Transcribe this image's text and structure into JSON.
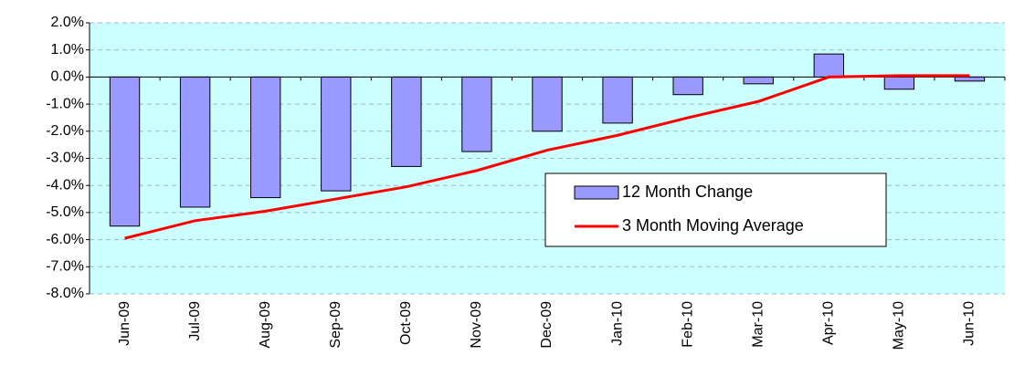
{
  "chart_data": {
    "type": "bar-line",
    "categories": [
      "Jun-09",
      "Jul-09",
      "Aug-09",
      "Sep-09",
      "Oct-09",
      "Nov-09",
      "Dec-09",
      "Jan-10",
      "Feb-10",
      "Mar-10",
      "Apr-10",
      "May-10",
      "Jun-10"
    ],
    "series": [
      {
        "name": "12 Month Change",
        "type": "bar",
        "color": "#9999ff",
        "values": [
          -5.5,
          -4.8,
          -4.45,
          -4.2,
          -3.3,
          -2.75,
          -2.0,
          -1.7,
          -0.65,
          -0.25,
          0.85,
          -0.45,
          -0.15
        ]
      },
      {
        "name": "3 Month Moving Average",
        "type": "line",
        "color": "#ff0000",
        "values": [
          -5.95,
          -5.3,
          -4.95,
          -4.5,
          -4.05,
          -3.45,
          -2.7,
          -2.15,
          -1.5,
          -0.9,
          0.0,
          0.05,
          0.05
        ]
      }
    ],
    "ylim": [
      -8,
      2
    ],
    "yticks": [
      {
        "value": 2,
        "label": "2.0%"
      },
      {
        "value": 1,
        "label": "1.0%"
      },
      {
        "value": 0,
        "label": "0.0%"
      },
      {
        "value": -1,
        "label": "-1.0%"
      },
      {
        "value": -2,
        "label": "-2.0%"
      },
      {
        "value": -3,
        "label": "-3.0%"
      },
      {
        "value": -4,
        "label": "-4.0%"
      },
      {
        "value": -5,
        "label": "-5.0%"
      },
      {
        "value": -6,
        "label": "-6.0%"
      },
      {
        "value": -7,
        "label": "-7.0%"
      },
      {
        "value": -8,
        "label": "-8.0%"
      }
    ],
    "grid": true
  }
}
